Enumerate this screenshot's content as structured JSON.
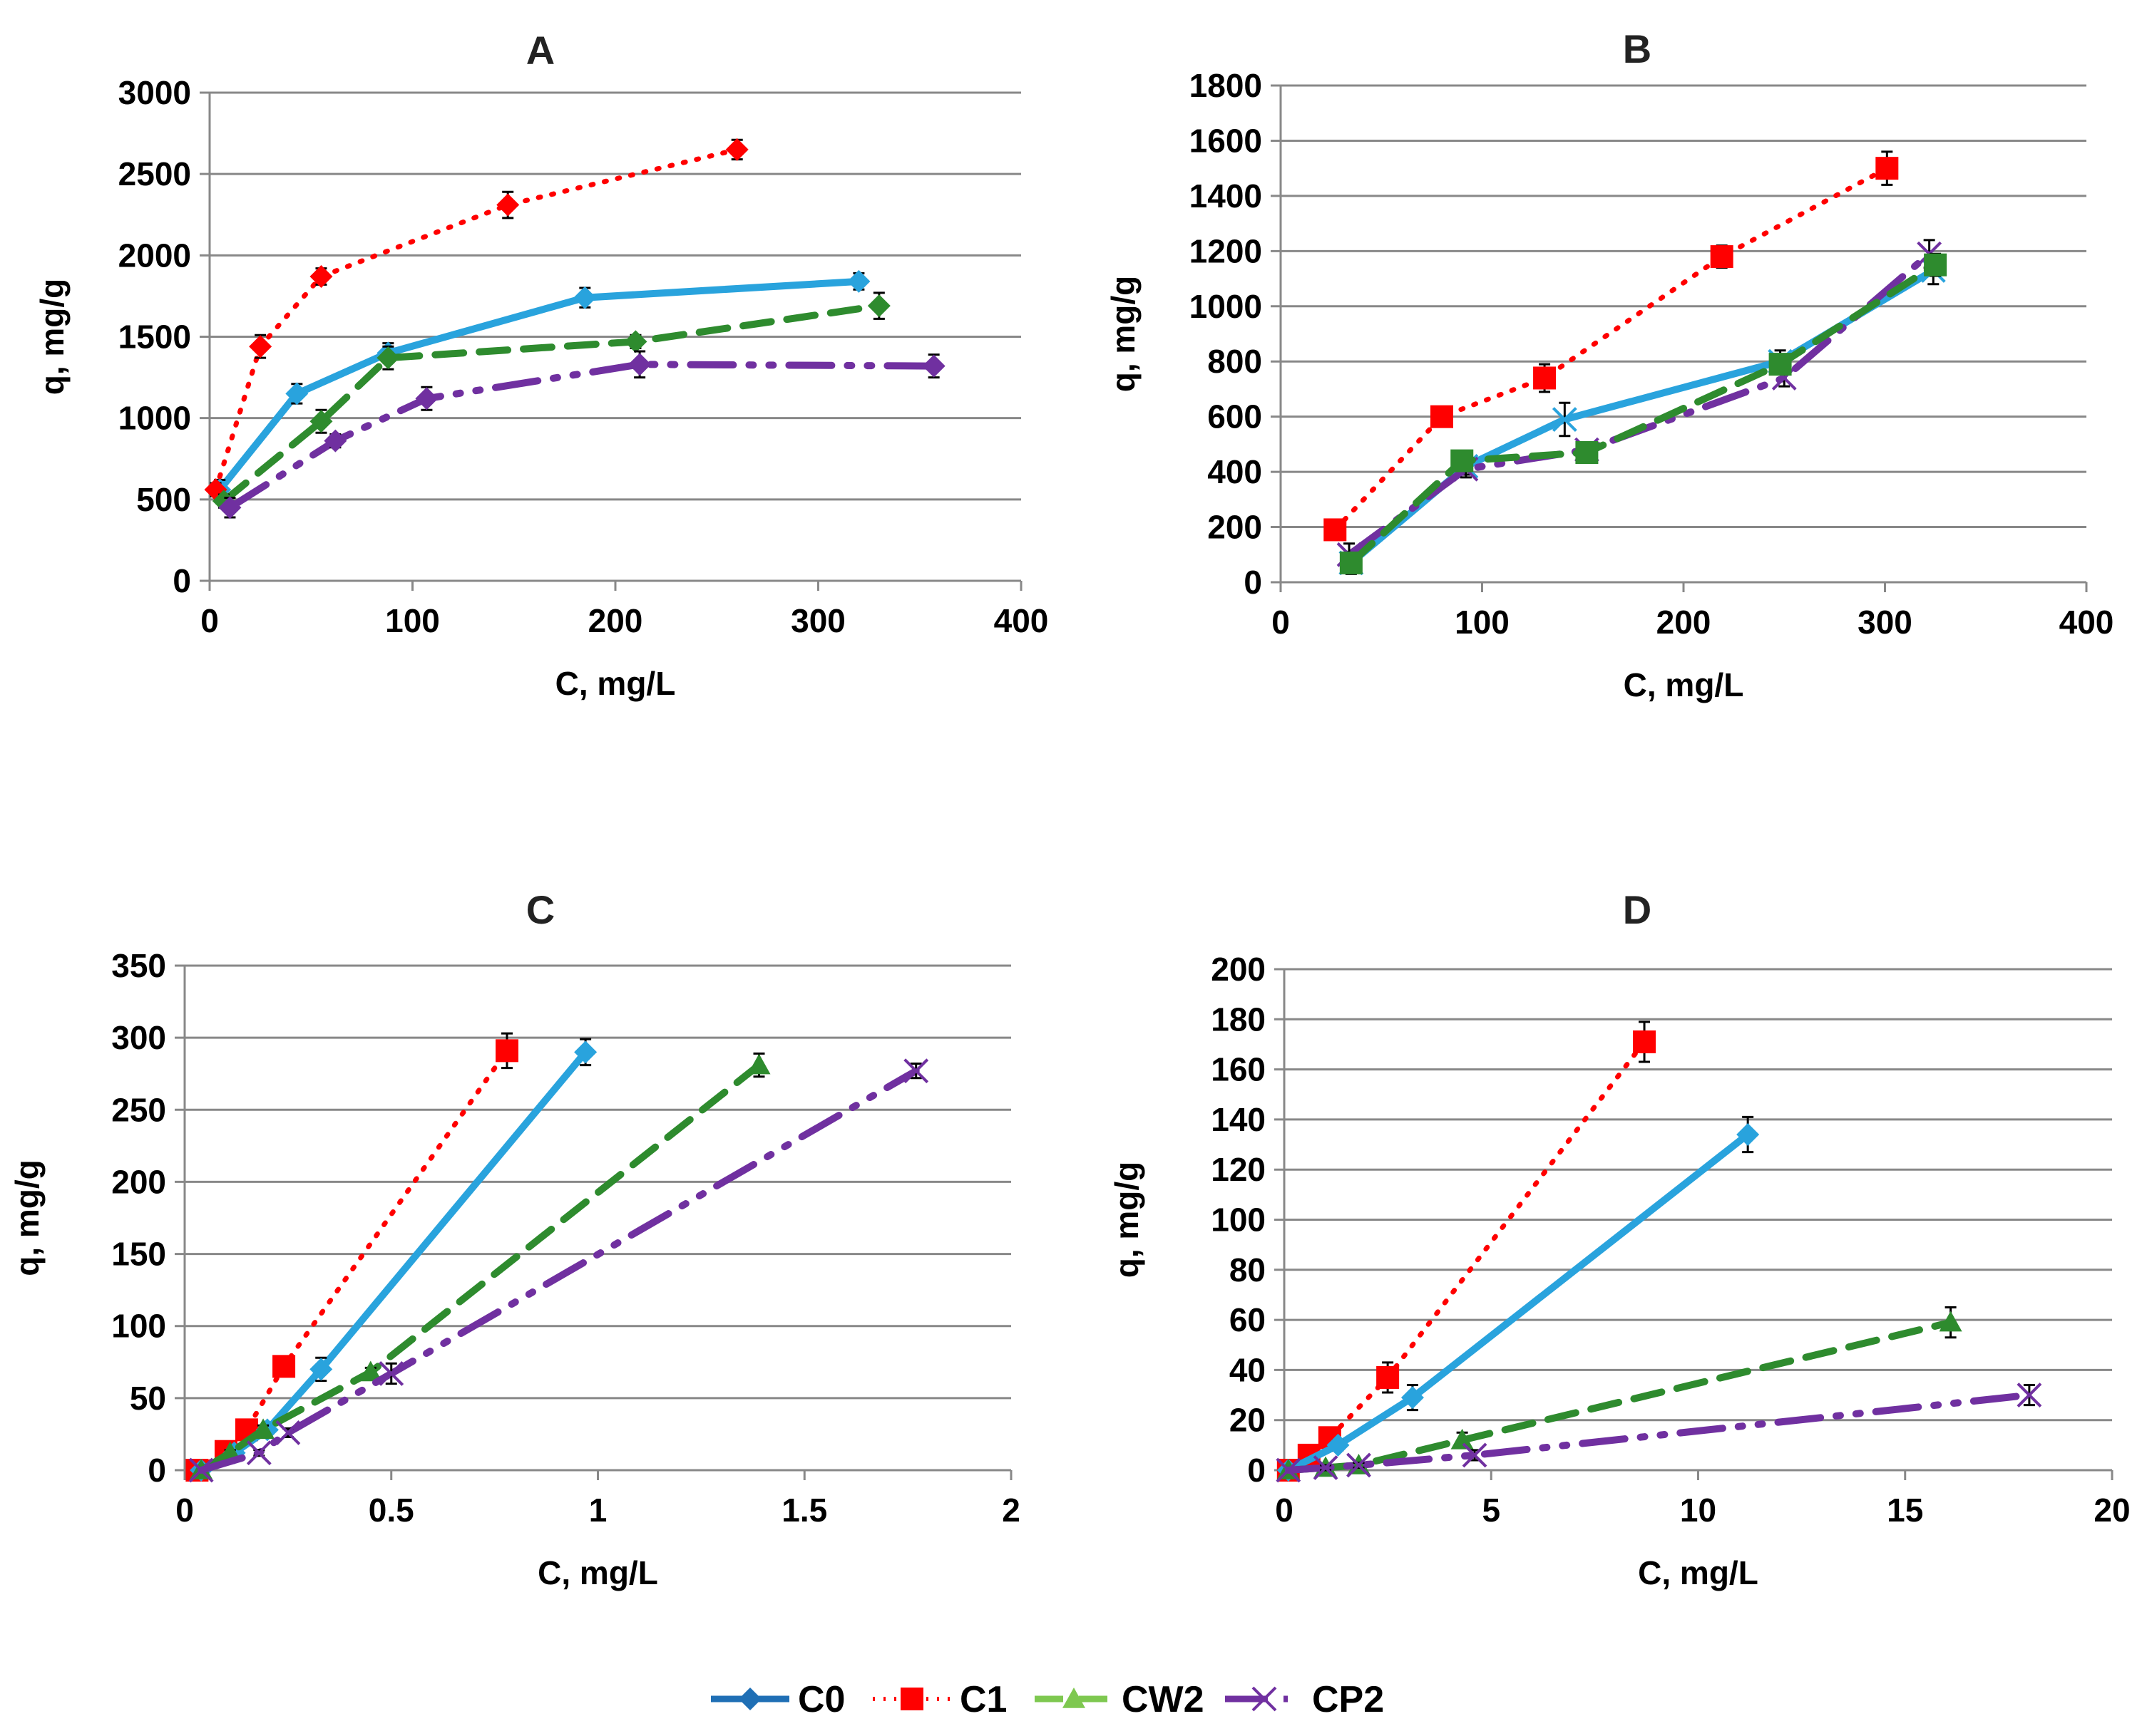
{
  "series_styles": {
    "C0": {
      "color": "#29a3dd",
      "legend_color": "#1f6fb5",
      "dash": "none"
    },
    "C1": {
      "color": "#ff0000",
      "legend_color": "#ff0000",
      "dash": "dotted"
    },
    "CW2": {
      "color": "#2e8b2e",
      "legend_color": "#7ec850",
      "dash": "dashed"
    },
    "CP2": {
      "color": "#7030a0",
      "legend_color": "#7030a0",
      "dash": "dash-dot"
    }
  },
  "legend": {
    "placement": "bottom-center",
    "entries": [
      "C0",
      "C1",
      "CW2",
      "CP2"
    ]
  },
  "chart_data": [
    {
      "type": "line",
      "title": "A",
      "xlabel": "C, mg/L",
      "ylabel": "q, mg/g",
      "xlim": [
        0,
        400
      ],
      "ylim": [
        0,
        3000
      ],
      "xticks": [
        "0",
        "100",
        "200",
        "300",
        "400"
      ],
      "yticks": [
        "0",
        "500",
        "1000",
        "1500",
        "2000",
        "2500",
        "3000"
      ],
      "grid": true,
      "marker": "diamond",
      "series": [
        {
          "name": "C0",
          "x": [
            5,
            43,
            88,
            185,
            320
          ],
          "y": [
            560,
            1150,
            1400,
            1740,
            1840
          ],
          "err": [
            60,
            60,
            60,
            60,
            50
          ]
        },
        {
          "name": "C1",
          "x": [
            3,
            25,
            55,
            147,
            260
          ],
          "y": [
            560,
            1440,
            1870,
            2310,
            2650
          ],
          "err": [
            40,
            70,
            50,
            80,
            60
          ]
        },
        {
          "name": "CW2",
          "x": [
            7,
            55,
            88,
            210,
            330
          ],
          "y": [
            490,
            980,
            1370,
            1470,
            1690
          ],
          "err": [
            40,
            70,
            70,
            40,
            80
          ]
        },
        {
          "name": "CP2",
          "x": [
            10,
            62,
            107,
            212,
            357
          ],
          "y": [
            450,
            860,
            1120,
            1330,
            1320
          ],
          "err": [
            60,
            40,
            70,
            80,
            70
          ]
        }
      ]
    },
    {
      "type": "line",
      "title": "B",
      "xlabel": "C, mg/L",
      "ylabel": "q, mg/g",
      "xlim": [
        0,
        400
      ],
      "ylim": [
        0,
        1800
      ],
      "xticks": [
        "0",
        "100",
        "200",
        "300",
        "400"
      ],
      "yticks": [
        "0",
        "200",
        "400",
        "600",
        "800",
        "1000",
        "1200",
        "1400",
        "1600",
        "1800"
      ],
      "grid": true,
      "marker": "square",
      "series": [
        {
          "name": "C1",
          "x": [
            27,
            80,
            131,
            219,
            301
          ],
          "y": [
            190,
            600,
            740,
            1180,
            1500
          ],
          "err": [
            20,
            20,
            50,
            40,
            60
          ]
        },
        {
          "name": "C0",
          "x": [
            35,
            92,
            141,
            248,
            324
          ],
          "y": [
            70,
            420,
            590,
            800,
            1130
          ],
          "err": [
            40,
            30,
            60,
            40,
            50
          ]
        },
        {
          "name": "CP2",
          "x": [
            34,
            92,
            152,
            250,
            322
          ],
          "y": [
            100,
            410,
            480,
            740,
            1190
          ],
          "err": [
            40,
            30,
            20,
            30,
            50
          ]
        },
        {
          "name": "CW2",
          "x": [
            35,
            90,
            152,
            248,
            325
          ],
          "y": [
            70,
            440,
            470,
            790,
            1150
          ],
          "err": [
            20,
            20,
            20,
            30,
            40
          ]
        }
      ]
    },
    {
      "type": "line",
      "title": "C",
      "xlabel": "C, mg/L",
      "ylabel": "q, mg/g",
      "xlim": [
        0,
        2
      ],
      "ylim": [
        0,
        350
      ],
      "xticks": [
        "0",
        "0.5",
        "1",
        "1.5",
        "2"
      ],
      "yticks": [
        "0",
        "50",
        "100",
        "150",
        "200",
        "250",
        "300",
        "350"
      ],
      "grid": true,
      "marker": "mixed",
      "series": [
        {
          "name": "C1",
          "x": [
            0.03,
            0.1,
            0.15,
            0.24,
            0.78
          ],
          "y": [
            0,
            13,
            28,
            72,
            291
          ],
          "err": [
            0,
            2,
            3,
            4,
            12
          ]
        },
        {
          "name": "C0",
          "x": [
            0.04,
            0.12,
            0.2,
            0.33,
            0.97
          ],
          "y": [
            0,
            12,
            28,
            70,
            290
          ],
          "err": [
            0,
            2,
            3,
            8,
            9
          ]
        },
        {
          "name": "CW2",
          "x": [
            0.04,
            0.11,
            0.19,
            0.45,
            1.39
          ],
          "y": [
            0,
            12,
            28,
            68,
            281
          ],
          "err": [
            0,
            2,
            3,
            3,
            8
          ]
        },
        {
          "name": "CP2",
          "x": [
            0.04,
            0.18,
            0.25,
            0.5,
            1.77
          ],
          "y": [
            0,
            12,
            26,
            67,
            277
          ],
          "err": [
            0,
            2,
            3,
            7,
            5
          ]
        }
      ]
    },
    {
      "type": "line",
      "title": "D",
      "xlabel": "C, mg/L",
      "ylabel": "q, mg/g",
      "xlim": [
        0,
        20
      ],
      "ylim": [
        0,
        200
      ],
      "xticks": [
        "0",
        "5",
        "10",
        "15",
        "20"
      ],
      "yticks": [
        "0",
        "20",
        "40",
        "60",
        "80",
        "100",
        "120",
        "140",
        "160",
        "180",
        "200"
      ],
      "grid": true,
      "marker": "mixed",
      "series": [
        {
          "name": "C1",
          "x": [
            0.1,
            0.6,
            1.1,
            2.5,
            8.7
          ],
          "y": [
            0,
            6,
            13,
            37,
            171
          ],
          "err": [
            0,
            1,
            2,
            6,
            8
          ]
        },
        {
          "name": "C0",
          "x": [
            0.1,
            1.3,
            3.1,
            11.2
          ],
          "y": [
            0,
            10,
            29,
            134
          ],
          "err": [
            0,
            2,
            5,
            7
          ]
        },
        {
          "name": "CW2",
          "x": [
            0.1,
            1,
            1.8,
            4.3,
            16.1
          ],
          "y": [
            0,
            1,
            2,
            12,
            59
          ],
          "err": [
            0,
            1,
            1,
            3,
            6
          ]
        },
        {
          "name": "CP2",
          "x": [
            0.1,
            1,
            1.8,
            4.6,
            18
          ],
          "y": [
            0,
            1,
            2,
            6,
            30
          ],
          "err": [
            0,
            1,
            1,
            2,
            4
          ]
        }
      ]
    }
  ]
}
